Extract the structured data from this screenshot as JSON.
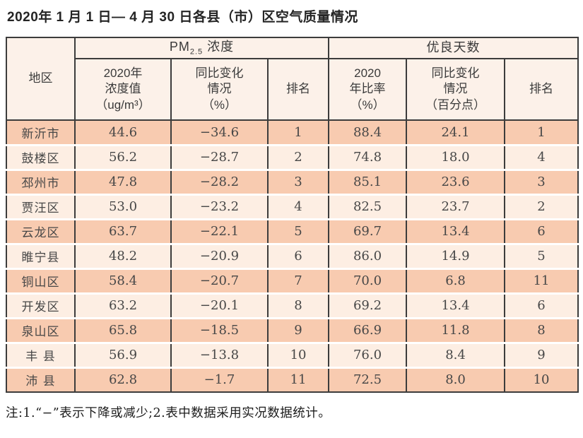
{
  "page": {
    "title": "2020年 1 月 1 日— 4 月 30 日各县（市）区空气质量情况",
    "note": "注:1.“−”表示下降或减少;2.表中数据采用实况数据统计。"
  },
  "table": {
    "corner_header": "地区",
    "pm_group": {
      "prefix": "PM",
      "sub": "2.5",
      "suffix": " 浓度"
    },
    "good_days_group": "优良天数",
    "sub_headers": [
      "2020年\n浓度值\n（ug/m³）",
      "同比变化\n情况\n（%）",
      "排名",
      "2020\n年比率\n（%）",
      "同比变化\n情况\n（百分点）",
      "排名"
    ],
    "rows": [
      [
        "新沂市",
        "44.6",
        "−34.6",
        "1",
        "88.4",
        "24.1",
        "1"
      ],
      [
        "鼓楼区",
        "56.2",
        "−28.7",
        "2",
        "74.8",
        "18.0",
        "4"
      ],
      [
        "邳州市",
        "47.8",
        "−28.2",
        "3",
        "85.1",
        "23.6",
        "3"
      ],
      [
        "贾汪区",
        "53.0",
        "−23.2",
        "4",
        "82.5",
        "23.7",
        "2"
      ],
      [
        "云龙区",
        "63.7",
        "−22.1",
        "5",
        "69.7",
        "13.4",
        "6"
      ],
      [
        "睢宁县",
        "48.2",
        "−20.9",
        "6",
        "86.0",
        "14.9",
        "5"
      ],
      [
        "铜山区",
        "58.4",
        "−20.7",
        "7",
        "70.0",
        "6.8",
        "11"
      ],
      [
        "开发区",
        "63.2",
        "−20.1",
        "8",
        "69.2",
        "13.4",
        "6"
      ],
      [
        "泉山区",
        "65.8",
        "−18.5",
        "9",
        "66.9",
        "11.8",
        "8"
      ],
      [
        "丰 县",
        "56.9",
        "−13.8",
        "10",
        "76.0",
        "8.4",
        "9"
      ],
      [
        "沛 县",
        "62.8",
        "−1.7",
        "11",
        "72.5",
        "8.0",
        "10"
      ]
    ]
  },
  "colors": {
    "row_dark": "#f8cbb0",
    "row_light": "#fdeee3",
    "header_bg": "#fcf1e9",
    "border": "#3c3c3c"
  }
}
